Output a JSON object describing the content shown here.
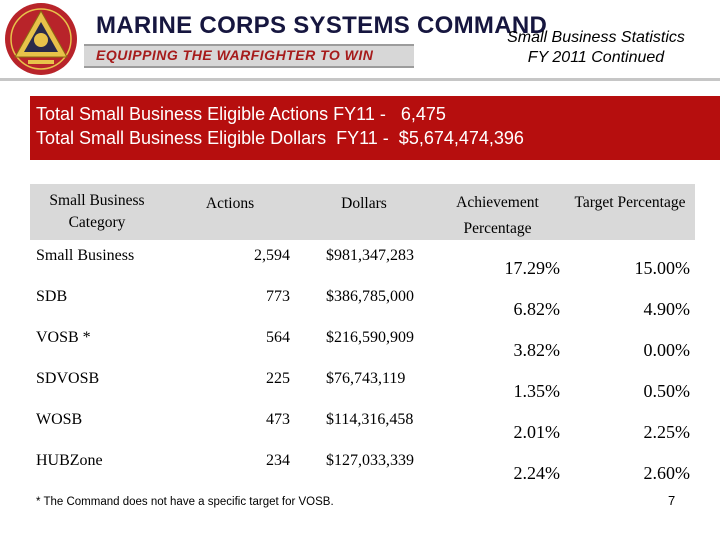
{
  "header": {
    "brand_title": "MARINE CORPS SYSTEMS COMMAND",
    "brand_slogan": "EQUIPPING THE WARFIGHTER TO WIN",
    "slide_title_line1": "Small Business Statistics",
    "slide_title_line2": "FY 2011 Continued"
  },
  "banner": {
    "line1": "Total Small Business Eligible Actions FY11 -   6,475",
    "line2": "Total Small Business Eligible Dollars  FY11 -  $5,674,474,396"
  },
  "table": {
    "headers": {
      "category": "Small Business Category",
      "actions": "Actions",
      "dollars": "Dollars",
      "achievement": "Achievement Percentage",
      "target": "Target Percentage"
    },
    "rows": [
      {
        "category": "Small Business",
        "actions": "2,594",
        "dollars": "$981,347,283",
        "achievement": "17.29%",
        "target": "15.00%"
      },
      {
        "category": "SDB",
        "actions": "773",
        "dollars": "$386,785,000",
        "achievement": "6.82%",
        "target": "4.90%"
      },
      {
        "category": "VOSB *",
        "actions": "564",
        "dollars": "$216,590,909",
        "achievement": "3.82%",
        "target": "0.00%"
      },
      {
        "category": "SDVOSB",
        "actions": "225",
        "dollars": "$76,743,119",
        "achievement": "1.35%",
        "target": "0.50%"
      },
      {
        "category": "WOSB",
        "actions": "473",
        "dollars": "$114,316,458",
        "achievement": "2.01%",
        "target": "2.25%"
      },
      {
        "category": "HUBZone",
        "actions": "234",
        "dollars": "$127,033,339",
        "achievement": "2.24%",
        "target": "2.60%"
      }
    ]
  },
  "footnote": "* The Command does not have a specific target for VOSB.",
  "page_number": "7",
  "colors": {
    "banner": "#b60e0e",
    "row_band": "#d9d9d9",
    "brand_navy": "#16163f",
    "brand_red": "#a61b1b"
  }
}
